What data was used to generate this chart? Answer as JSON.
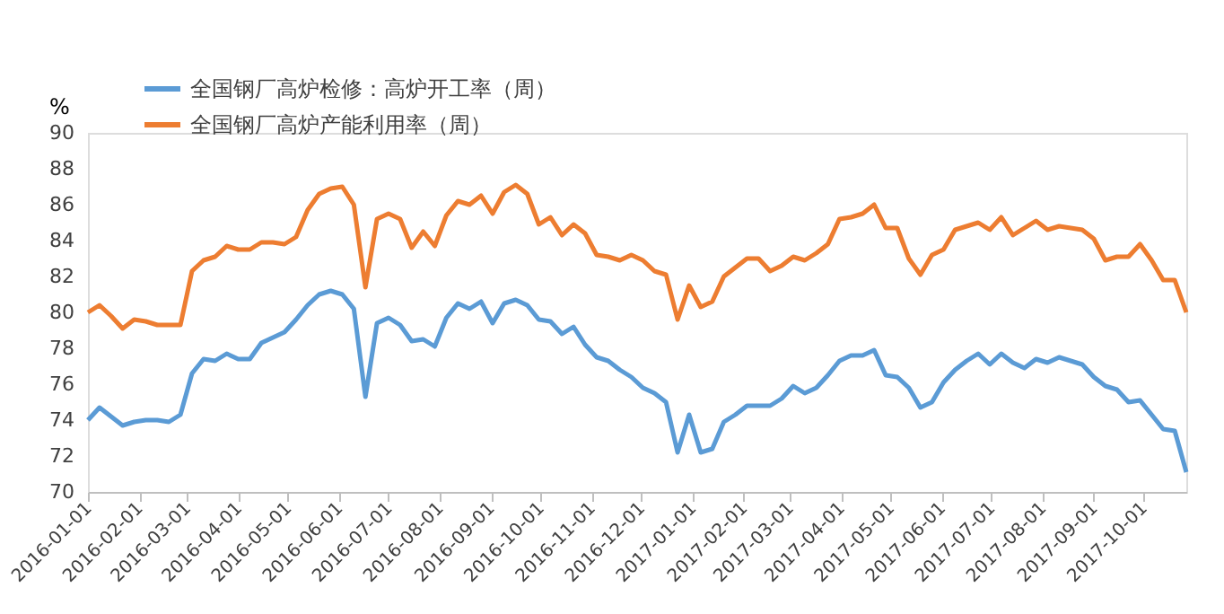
{
  "chart_data": {
    "type": "line",
    "ylabel": "%",
    "legend": "top left",
    "grid": false,
    "line_style": "solid",
    "x": [
      "2016-01-01",
      "2016-01-08",
      "2016-01-15",
      "2016-01-22",
      "2016-01-29",
      "2016-02-05",
      "2016-02-12",
      "2016-02-19",
      "2016-02-26",
      "2016-03-04",
      "2016-03-11",
      "2016-03-18",
      "2016-03-25",
      "2016-04-01",
      "2016-04-08",
      "2016-04-15",
      "2016-04-22",
      "2016-04-29",
      "2016-05-06",
      "2016-05-13",
      "2016-05-20",
      "2016-05-27",
      "2016-06-03",
      "2016-06-10",
      "2016-06-17",
      "2016-06-24",
      "2016-07-01",
      "2016-07-08",
      "2016-07-15",
      "2016-07-22",
      "2016-07-29",
      "2016-08-05",
      "2016-08-12",
      "2016-08-19",
      "2016-08-26",
      "2016-09-02",
      "2016-09-09",
      "2016-09-16",
      "2016-09-23",
      "2016-09-30",
      "2016-10-07",
      "2016-10-14",
      "2016-10-21",
      "2016-10-28",
      "2016-11-04",
      "2016-11-11",
      "2016-11-18",
      "2016-11-25",
      "2016-12-02",
      "2016-12-09",
      "2016-12-16",
      "2016-12-23",
      "2016-12-30",
      "2017-01-06",
      "2017-01-13",
      "2017-01-20",
      "2017-01-27",
      "2017-02-03",
      "2017-02-10",
      "2017-02-17",
      "2017-02-24",
      "2017-03-03",
      "2017-03-10",
      "2017-03-17",
      "2017-03-24",
      "2017-03-31",
      "2017-04-07",
      "2017-04-14",
      "2017-04-21",
      "2017-04-28",
      "2017-05-05",
      "2017-05-12",
      "2017-05-19",
      "2017-05-26",
      "2017-06-02",
      "2017-06-09",
      "2017-06-16",
      "2017-06-23",
      "2017-06-30",
      "2017-07-07",
      "2017-07-14",
      "2017-07-21",
      "2017-07-28",
      "2017-08-04",
      "2017-08-11",
      "2017-08-18",
      "2017-08-25",
      "2017-09-01",
      "2017-09-08",
      "2017-09-15",
      "2017-09-22",
      "2017-09-29",
      "2017-10-06",
      "2017-10-13",
      "2017-10-20",
      "2017-10-27"
    ],
    "xlim": [
      "2016-01-01",
      "2017-10-27"
    ],
    "xticks": [
      "2016-01-01",
      "2016-02-01",
      "2016-03-01",
      "2016-04-01",
      "2016-05-01",
      "2016-06-01",
      "2016-07-01",
      "2016-08-01",
      "2016-09-01",
      "2016-10-01",
      "2016-11-01",
      "2016-12-01",
      "2017-01-01",
      "2017-02-01",
      "2017-03-01",
      "2017-04-01",
      "2017-05-01",
      "2017-06-01",
      "2017-07-01",
      "2017-08-01",
      "2017-09-01",
      "2017-10-01"
    ],
    "ylim": [
      70,
      90
    ],
    "yticks": [
      70,
      72,
      74,
      76,
      78,
      80,
      82,
      84,
      86,
      88,
      90
    ],
    "series": [
      {
        "name": "全国钢厂高炉检修：高炉开工率（周）",
        "color": "#5b9bd5",
        "values": [
          74.0,
          74.7,
          74.2,
          73.7,
          73.9,
          74.0,
          74.0,
          73.9,
          74.3,
          76.6,
          77.4,
          77.3,
          77.7,
          77.4,
          77.4,
          78.3,
          78.6,
          78.9,
          79.6,
          80.4,
          81.0,
          81.2,
          81.0,
          80.2,
          75.3,
          79.4,
          79.7,
          79.3,
          78.4,
          78.5,
          78.1,
          79.7,
          80.5,
          80.2,
          80.6,
          79.4,
          80.5,
          80.7,
          80.4,
          79.6,
          79.5,
          78.8,
          79.2,
          78.2,
          77.5,
          77.3,
          76.8,
          76.4,
          75.8,
          75.5,
          75.0,
          72.2,
          74.3,
          72.2,
          72.4,
          73.9,
          74.3,
          74.8,
          74.8,
          74.8,
          75.2,
          75.9,
          75.5,
          75.8,
          76.5,
          77.3,
          77.6,
          77.6,
          77.9,
          76.5,
          76.4,
          75.8,
          74.7,
          75.0,
          76.1,
          76.8,
          77.3,
          77.7,
          77.1,
          77.7,
          77.2,
          76.9,
          77.4,
          77.2,
          77.5,
          77.3,
          77.1,
          76.4,
          75.9,
          75.7,
          75.0,
          75.1,
          74.3,
          73.5,
          73.4,
          71.1
        ]
      },
      {
        "name": "全国钢厂高炉产能利用率（周）",
        "color": "#ed7d31",
        "values": [
          80.0,
          80.4,
          79.8,
          79.1,
          79.6,
          79.5,
          79.3,
          79.3,
          79.3,
          82.3,
          82.9,
          83.1,
          83.7,
          83.5,
          83.5,
          83.9,
          83.9,
          83.8,
          84.2,
          85.7,
          86.6,
          86.9,
          87.0,
          86.0,
          81.4,
          85.2,
          85.5,
          85.2,
          83.6,
          84.5,
          83.7,
          85.4,
          86.2,
          86.0,
          86.5,
          85.5,
          86.7,
          87.1,
          86.6,
          84.9,
          85.3,
          84.3,
          84.9,
          84.4,
          83.2,
          83.1,
          82.9,
          83.2,
          82.9,
          82.3,
          82.1,
          79.6,
          81.5,
          80.3,
          80.6,
          82.0,
          82.5,
          83.0,
          83.0,
          82.3,
          82.6,
          83.1,
          82.9,
          83.3,
          83.8,
          85.2,
          85.3,
          85.5,
          86.0,
          84.7,
          84.7,
          83.0,
          82.1,
          83.2,
          83.5,
          84.6,
          84.8,
          85.0,
          84.6,
          85.3,
          84.3,
          84.7,
          85.1,
          84.6,
          84.8,
          84.7,
          84.6,
          84.1,
          82.9,
          83.1,
          83.1,
          83.8,
          82.9,
          81.8,
          81.8,
          80.0
        ]
      }
    ]
  }
}
